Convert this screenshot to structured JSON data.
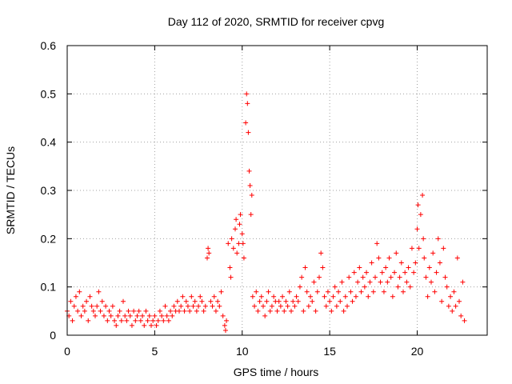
{
  "chart_data": {
    "type": "scatter",
    "title": "Day 112 of 2020, SRMTID for receiver cpvg",
    "xlabel": "GPS time / hours",
    "ylabel": "SRMTID / TECUs",
    "xlim": [
      0,
      24
    ],
    "ylim": [
      0,
      0.6
    ],
    "x_ticks": [
      "0",
      "5",
      "10",
      "15",
      "20"
    ],
    "x_tick_values": [
      0,
      5,
      10,
      15,
      20
    ],
    "y_ticks": [
      "0",
      "0.1",
      "0.2",
      "0.3",
      "0.4",
      "0.5",
      "0.6"
    ],
    "y_tick_values": [
      0,
      0.1,
      0.2,
      0.3,
      0.4,
      0.5,
      0.6
    ],
    "grid": true,
    "marker": "+",
    "color": "#ff0000",
    "series": [
      {
        "name": "SRMTID",
        "points": [
          [
            0.0,
            0.05
          ],
          [
            0.1,
            0.04
          ],
          [
            0.2,
            0.07
          ],
          [
            0.3,
            0.03
          ],
          [
            0.4,
            0.06
          ],
          [
            0.5,
            0.08
          ],
          [
            0.6,
            0.05
          ],
          [
            0.7,
            0.09
          ],
          [
            0.8,
            0.04
          ],
          [
            0.9,
            0.06
          ],
          [
            1.0,
            0.05
          ],
          [
            1.1,
            0.07
          ],
          [
            1.2,
            0.03
          ],
          [
            1.3,
            0.08
          ],
          [
            1.4,
            0.06
          ],
          [
            1.5,
            0.05
          ],
          [
            1.6,
            0.04
          ],
          [
            1.7,
            0.06
          ],
          [
            1.8,
            0.09
          ],
          [
            1.9,
            0.05
          ],
          [
            2.0,
            0.07
          ],
          [
            2.1,
            0.04
          ],
          [
            2.2,
            0.06
          ],
          [
            2.3,
            0.03
          ],
          [
            2.4,
            0.05
          ],
          [
            2.5,
            0.04
          ],
          [
            2.6,
            0.06
          ],
          [
            2.7,
            0.03
          ],
          [
            2.8,
            0.02
          ],
          [
            2.9,
            0.04
          ],
          [
            3.0,
            0.05
          ],
          [
            3.1,
            0.03
          ],
          [
            3.2,
            0.07
          ],
          [
            3.3,
            0.04
          ],
          [
            3.4,
            0.03
          ],
          [
            3.5,
            0.05
          ],
          [
            3.6,
            0.04
          ],
          [
            3.7,
            0.02
          ],
          [
            3.8,
            0.05
          ],
          [
            3.9,
            0.03
          ],
          [
            4.0,
            0.04
          ],
          [
            4.1,
            0.05
          ],
          [
            4.2,
            0.03
          ],
          [
            4.3,
            0.04
          ],
          [
            4.4,
            0.02
          ],
          [
            4.5,
            0.05
          ],
          [
            4.6,
            0.03
          ],
          [
            4.7,
            0.04
          ],
          [
            4.8,
            0.02
          ],
          [
            4.9,
            0.03
          ],
          [
            5.0,
            0.04
          ],
          [
            5.1,
            0.02
          ],
          [
            5.2,
            0.03
          ],
          [
            5.3,
            0.05
          ],
          [
            5.4,
            0.04
          ],
          [
            5.5,
            0.03
          ],
          [
            5.6,
            0.06
          ],
          [
            5.7,
            0.04
          ],
          [
            5.8,
            0.03
          ],
          [
            5.9,
            0.05
          ],
          [
            6.0,
            0.04
          ],
          [
            6.1,
            0.06
          ],
          [
            6.2,
            0.05
          ],
          [
            6.3,
            0.07
          ],
          [
            6.4,
            0.05
          ],
          [
            6.5,
            0.06
          ],
          [
            6.6,
            0.08
          ],
          [
            6.7,
            0.05
          ],
          [
            6.8,
            0.07
          ],
          [
            6.9,
            0.06
          ],
          [
            7.0,
            0.05
          ],
          [
            7.1,
            0.08
          ],
          [
            7.2,
            0.06
          ],
          [
            7.3,
            0.07
          ],
          [
            7.4,
            0.05
          ],
          [
            7.5,
            0.06
          ],
          [
            7.6,
            0.08
          ],
          [
            7.7,
            0.07
          ],
          [
            7.8,
            0.05
          ],
          [
            7.9,
            0.06
          ],
          [
            8.0,
            0.16
          ],
          [
            8.05,
            0.18
          ],
          [
            8.1,
            0.17
          ],
          [
            8.2,
            0.07
          ],
          [
            8.3,
            0.06
          ],
          [
            8.4,
            0.08
          ],
          [
            8.5,
            0.05
          ],
          [
            8.6,
            0.07
          ],
          [
            8.7,
            0.06
          ],
          [
            8.8,
            0.09
          ],
          [
            8.9,
            0.04
          ],
          [
            9.0,
            0.02
          ],
          [
            9.05,
            0.01
          ],
          [
            9.1,
            0.03
          ],
          [
            9.2,
            0.19
          ],
          [
            9.3,
            0.14
          ],
          [
            9.35,
            0.12
          ],
          [
            9.4,
            0.2
          ],
          [
            9.5,
            0.18
          ],
          [
            9.6,
            0.22
          ],
          [
            9.65,
            0.24
          ],
          [
            9.7,
            0.17
          ],
          [
            9.8,
            0.19
          ],
          [
            9.85,
            0.23
          ],
          [
            9.9,
            0.25
          ],
          [
            10.0,
            0.21
          ],
          [
            10.05,
            0.19
          ],
          [
            10.1,
            0.16
          ],
          [
            10.2,
            0.44
          ],
          [
            10.25,
            0.5
          ],
          [
            10.3,
            0.48
          ],
          [
            10.35,
            0.42
          ],
          [
            10.4,
            0.34
          ],
          [
            10.45,
            0.31
          ],
          [
            10.5,
            0.25
          ],
          [
            10.55,
            0.29
          ],
          [
            10.6,
            0.08
          ],
          [
            10.7,
            0.06
          ],
          [
            10.8,
            0.09
          ],
          [
            10.9,
            0.05
          ],
          [
            11.0,
            0.07
          ],
          [
            11.1,
            0.08
          ],
          [
            11.2,
            0.06
          ],
          [
            11.3,
            0.04
          ],
          [
            11.4,
            0.07
          ],
          [
            11.5,
            0.09
          ],
          [
            11.6,
            0.05
          ],
          [
            11.7,
            0.06
          ],
          [
            11.8,
            0.08
          ],
          [
            11.9,
            0.07
          ],
          [
            12.0,
            0.05
          ],
          [
            12.1,
            0.07
          ],
          [
            12.2,
            0.06
          ],
          [
            12.3,
            0.08
          ],
          [
            12.4,
            0.05
          ],
          [
            12.5,
            0.07
          ],
          [
            12.6,
            0.06
          ],
          [
            12.7,
            0.09
          ],
          [
            12.8,
            0.05
          ],
          [
            12.9,
            0.07
          ],
          [
            13.0,
            0.06
          ],
          [
            13.1,
            0.08
          ],
          [
            13.2,
            0.07
          ],
          [
            13.3,
            0.1
          ],
          [
            13.4,
            0.12
          ],
          [
            13.5,
            0.05
          ],
          [
            13.6,
            0.14
          ],
          [
            13.7,
            0.09
          ],
          [
            13.8,
            0.06
          ],
          [
            13.9,
            0.08
          ],
          [
            14.0,
            0.07
          ],
          [
            14.1,
            0.11
          ],
          [
            14.2,
            0.05
          ],
          [
            14.3,
            0.09
          ],
          [
            14.4,
            0.12
          ],
          [
            14.5,
            0.17
          ],
          [
            14.6,
            0.14
          ],
          [
            14.7,
            0.08
          ],
          [
            14.8,
            0.06
          ],
          [
            14.9,
            0.09
          ],
          [
            15.0,
            0.07
          ],
          [
            15.1,
            0.05
          ],
          [
            15.2,
            0.08
          ],
          [
            15.3,
            0.1
          ],
          [
            15.4,
            0.06
          ],
          [
            15.5,
            0.09
          ],
          [
            15.6,
            0.07
          ],
          [
            15.7,
            0.11
          ],
          [
            15.8,
            0.05
          ],
          [
            15.9,
            0.08
          ],
          [
            16.0,
            0.06
          ],
          [
            16.1,
            0.12
          ],
          [
            16.2,
            0.09
          ],
          [
            16.3,
            0.07
          ],
          [
            16.4,
            0.13
          ],
          [
            16.5,
            0.08
          ],
          [
            16.6,
            0.11
          ],
          [
            16.7,
            0.14
          ],
          [
            16.8,
            0.09
          ],
          [
            16.9,
            0.12
          ],
          [
            17.0,
            0.1
          ],
          [
            17.1,
            0.13
          ],
          [
            17.2,
            0.08
          ],
          [
            17.3,
            0.11
          ],
          [
            17.4,
            0.15
          ],
          [
            17.5,
            0.09
          ],
          [
            17.6,
            0.12
          ],
          [
            17.7,
            0.19
          ],
          [
            17.8,
            0.16
          ],
          [
            17.9,
            0.11
          ],
          [
            18.0,
            0.13
          ],
          [
            18.1,
            0.09
          ],
          [
            18.2,
            0.14
          ],
          [
            18.3,
            0.11
          ],
          [
            18.4,
            0.16
          ],
          [
            18.5,
            0.12
          ],
          [
            18.6,
            0.08
          ],
          [
            18.7,
            0.13
          ],
          [
            18.8,
            0.17
          ],
          [
            18.9,
            0.1
          ],
          [
            19.0,
            0.12
          ],
          [
            19.1,
            0.15
          ],
          [
            19.2,
            0.09
          ],
          [
            19.3,
            0.13
          ],
          [
            19.4,
            0.11
          ],
          [
            19.5,
            0.14
          ],
          [
            19.6,
            0.1
          ],
          [
            19.7,
            0.18
          ],
          [
            19.8,
            0.13
          ],
          [
            19.9,
            0.15
          ],
          [
            20.0,
            0.22
          ],
          [
            20.05,
            0.27
          ],
          [
            20.1,
            0.18
          ],
          [
            20.2,
            0.25
          ],
          [
            20.3,
            0.29
          ],
          [
            20.35,
            0.2
          ],
          [
            20.4,
            0.16
          ],
          [
            20.5,
            0.12
          ],
          [
            20.6,
            0.08
          ],
          [
            20.7,
            0.14
          ],
          [
            20.8,
            0.11
          ],
          [
            20.9,
            0.17
          ],
          [
            21.0,
            0.09
          ],
          [
            21.1,
            0.13
          ],
          [
            21.2,
            0.2
          ],
          [
            21.3,
            0.15
          ],
          [
            21.4,
            0.07
          ],
          [
            21.5,
            0.18
          ],
          [
            21.6,
            0.12
          ],
          [
            21.7,
            0.1
          ],
          [
            21.8,
            0.06
          ],
          [
            21.9,
            0.08
          ],
          [
            22.0,
            0.05
          ],
          [
            22.1,
            0.09
          ],
          [
            22.2,
            0.06
          ],
          [
            22.3,
            0.16
          ],
          [
            22.4,
            0.07
          ],
          [
            22.5,
            0.04
          ],
          [
            22.6,
            0.11
          ],
          [
            22.7,
            0.03
          ]
        ]
      }
    ]
  }
}
